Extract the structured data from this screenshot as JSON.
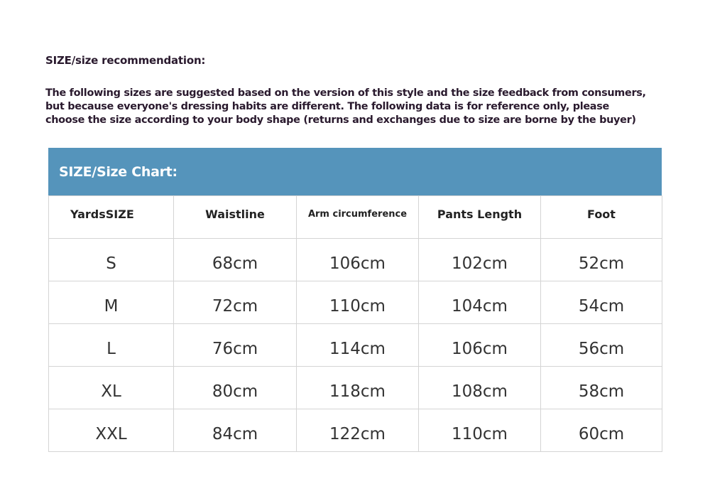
{
  "title": "SIZE/size recommendation:",
  "intro_lines": [
    "The following sizes are suggested based on the version of this style and the size feedback from consumers,",
    "but because everyone's dressing habits are different. The following data is for reference only, please",
    "choose the size according to your body shape (returns and exchanges due to size are borne by the buyer)"
  ],
  "chart": {
    "heading": "SIZE/Size Chart:",
    "heading_color": "#5594bb",
    "columns": [
      "YardsSIZE",
      "Waistline",
      "Arm circumference",
      "Pants Length",
      "Foot"
    ],
    "rows": [
      [
        "S",
        "68cm",
        "106cm",
        "102cm",
        "52cm"
      ],
      [
        "M",
        "72cm",
        "110cm",
        "104cm",
        "54cm"
      ],
      [
        "L",
        "76cm",
        "114cm",
        "106cm",
        "56cm"
      ],
      [
        "XL",
        "80cm",
        "118cm",
        "108cm",
        "58cm"
      ],
      [
        "XXL",
        "84cm",
        "122cm",
        "110cm",
        "60cm"
      ]
    ]
  }
}
